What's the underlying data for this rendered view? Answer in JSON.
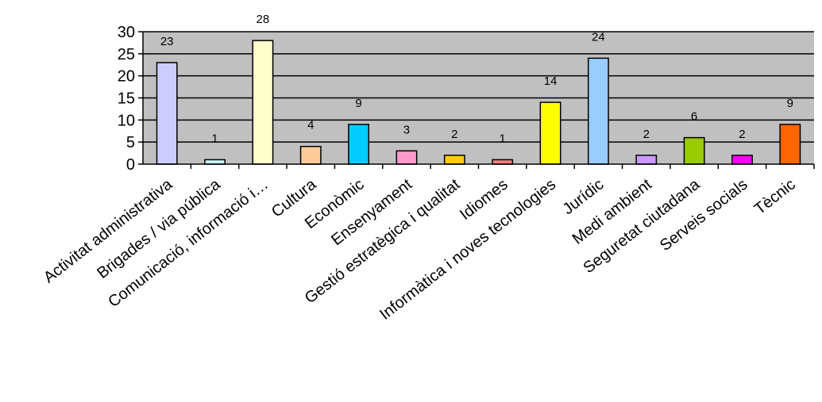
{
  "chart_data": {
    "type": "bar",
    "categories": [
      "Activitat administrativa",
      "Brigades / via pública",
      "Comunicació, informació i…",
      "Cultura",
      "Econòmic",
      "Ensenyament",
      "Gestió estratègica i qualitat",
      "Idiomes",
      "Informàtica i noves tecnologies",
      "Jurídic",
      "Medi ambient",
      "Seguretat ciutadana",
      "Serveis socials",
      "Tècnic"
    ],
    "series": [
      {
        "values": [
          23,
          1,
          28,
          4,
          9,
          3,
          2,
          1,
          14,
          24,
          2,
          6,
          2,
          9
        ],
        "colors": [
          "#ccccff",
          "#ccffff",
          "#ffffcc",
          "#ffcc99",
          "#00ccff",
          "#ff99cc",
          "#ffcc00",
          "#ff8080",
          "#ffff00",
          "#99ccff",
          "#cc99ff",
          "#99cc00",
          "#ff00ff",
          "#ff6600"
        ]
      }
    ],
    "y_ticks": [
      0,
      5,
      10,
      15,
      20,
      25,
      30
    ],
    "ylim": [
      0,
      30
    ],
    "grid": true,
    "legend": "none",
    "plot_background": "#c0c0c0",
    "title": "",
    "xlabel": "",
    "ylabel": ""
  }
}
